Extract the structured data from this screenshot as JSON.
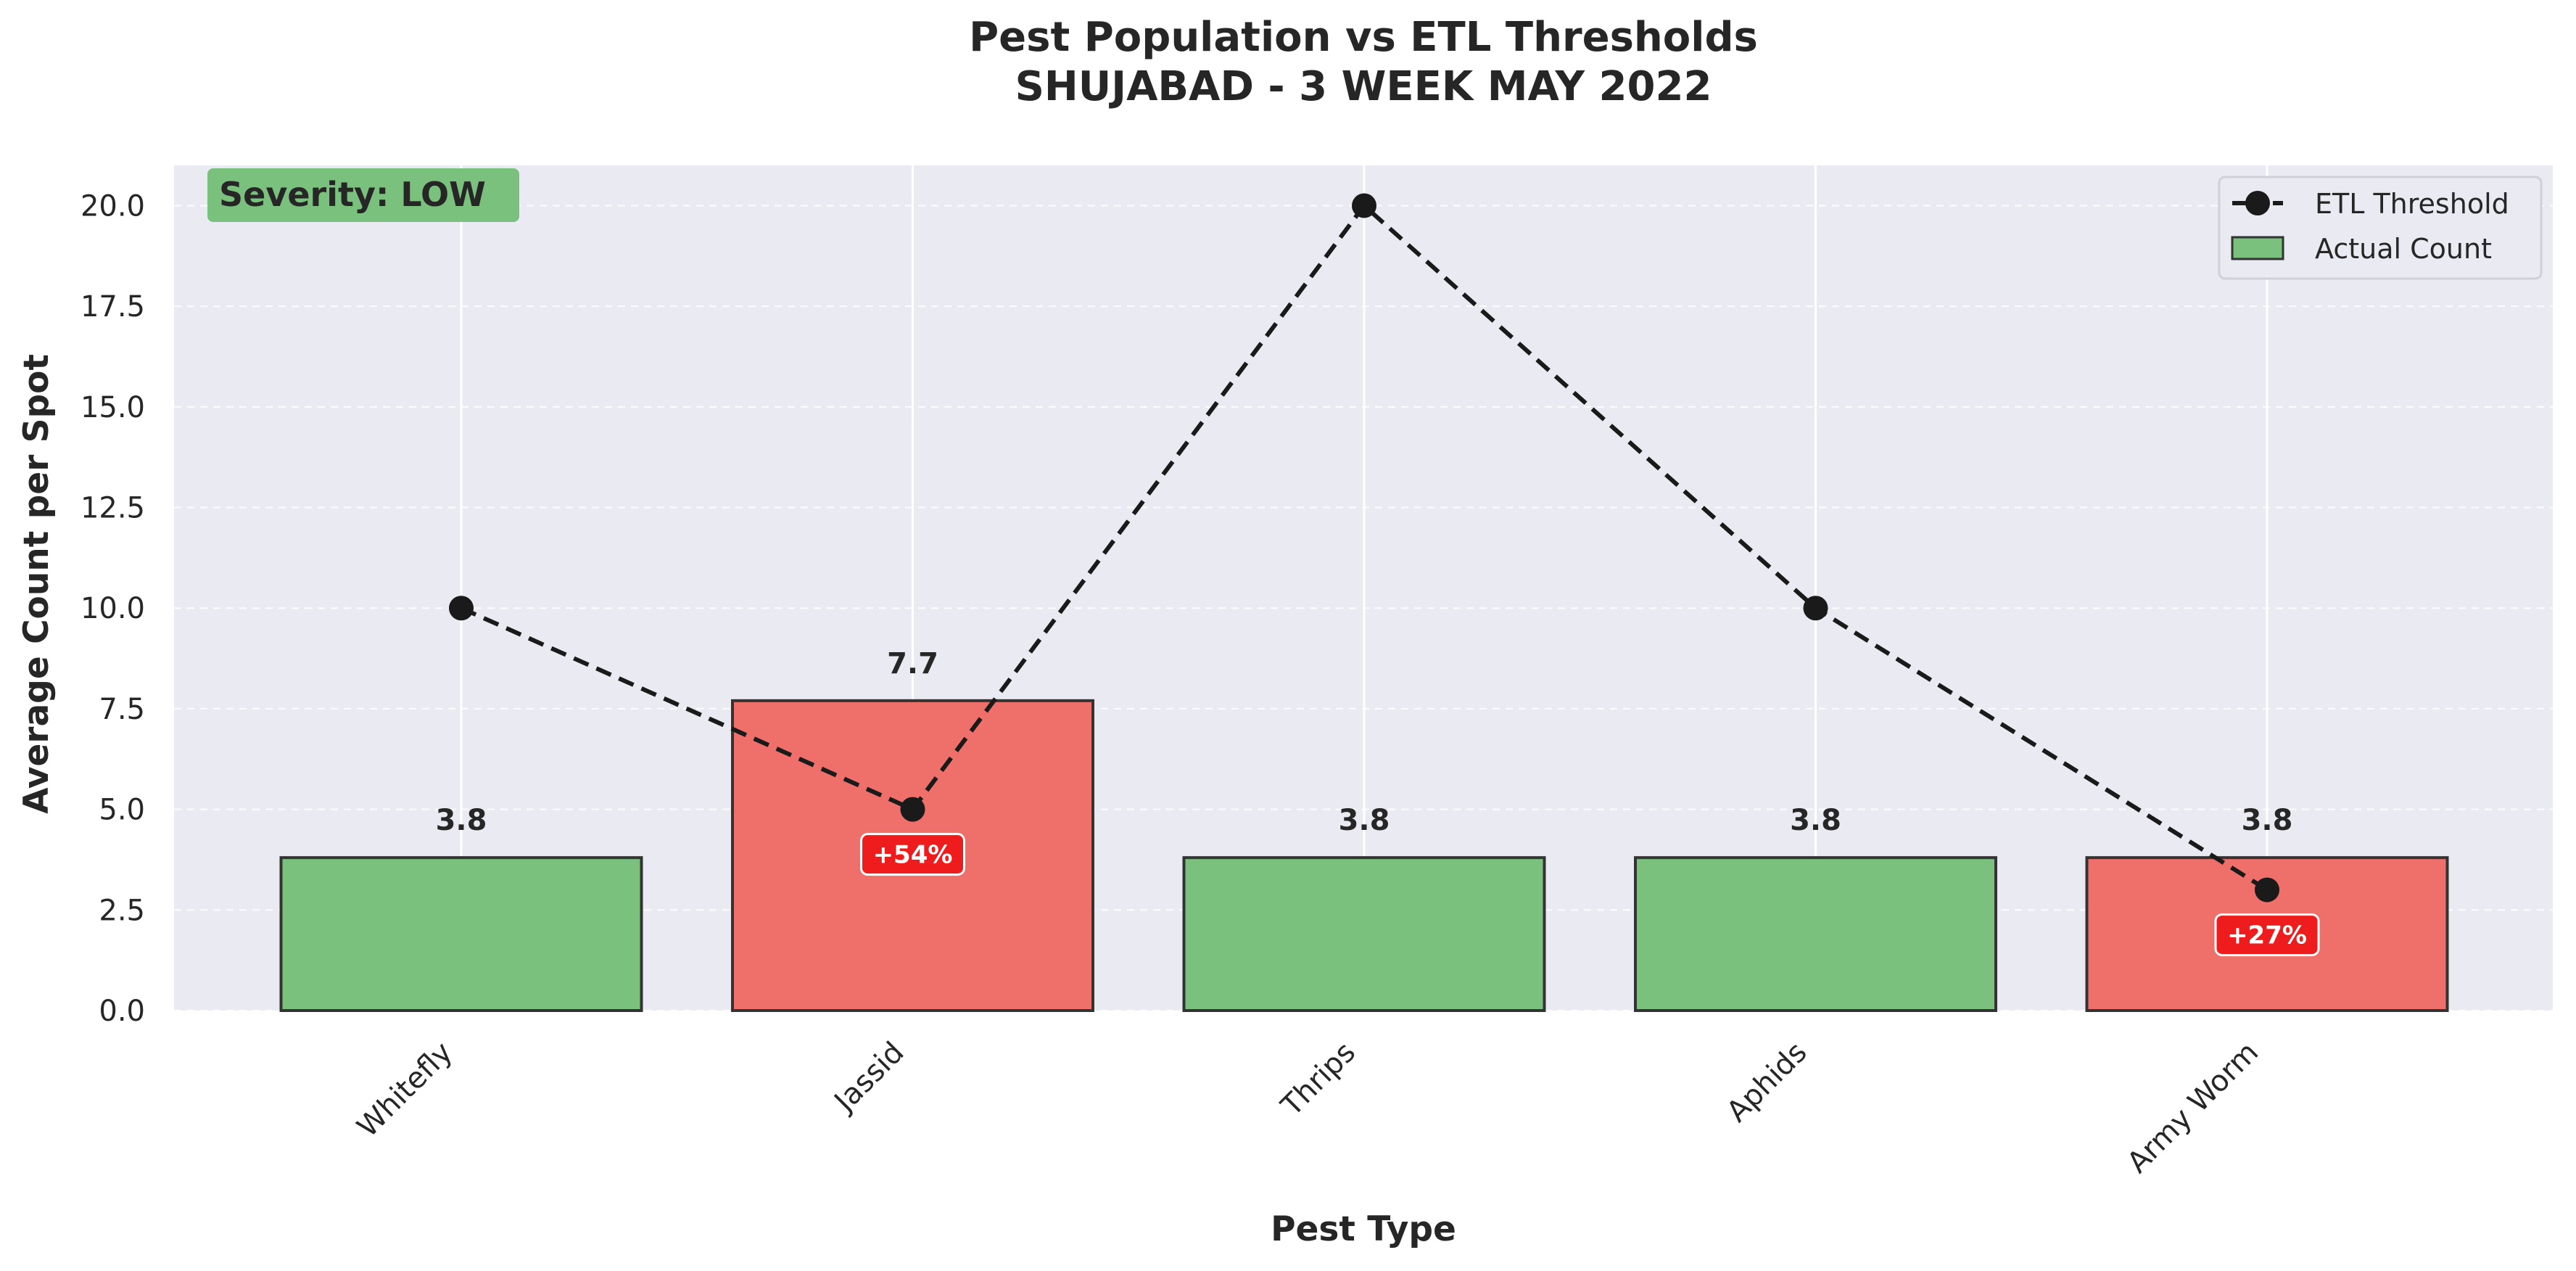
{
  "chart_data": {
    "type": "bar",
    "title": "Pest Population vs ETL Thresholds",
    "subtitle": "SHUJABAD - 3 WEEK MAY 2022",
    "xlabel": "Pest Type",
    "ylabel": "Average Count per Spot",
    "ylim": [
      0,
      21
    ],
    "yticks": [
      "0.0",
      "2.5",
      "5.0",
      "7.5",
      "10.0",
      "12.5",
      "15.0",
      "17.5",
      "20.0"
    ],
    "categories": [
      "Whitefly",
      "Jassid",
      "Thrips",
      "Aphids",
      "Army Worm"
    ],
    "series": [
      {
        "name": "Actual Count",
        "type": "bar",
        "values": [
          3.8,
          7.7,
          3.8,
          3.8,
          3.8
        ],
        "value_labels": [
          "3.8",
          "7.7",
          "3.8",
          "3.8",
          "3.8"
        ],
        "bar_status": [
          "below",
          "above",
          "below",
          "below",
          "above"
        ]
      },
      {
        "name": "ETL Threshold",
        "type": "line",
        "style": "dashed",
        "marker": "circle",
        "values": [
          10,
          5,
          20,
          10,
          3
        ]
      }
    ],
    "exceed_labels": [
      {
        "category": "Jassid",
        "text": "+54%"
      },
      {
        "category": "Army Worm",
        "text": "+27%"
      }
    ],
    "severity_label": "Severity: LOW",
    "legend_placement": "top-right",
    "grid": true,
    "colors": {
      "below": "#7ac17e",
      "above": "#ef706a",
      "line": "#1a1a1a",
      "plot_bg": "#eaeaf2",
      "exceed_box": "#ee1c1c",
      "severity_box": "#7ac17e"
    }
  }
}
